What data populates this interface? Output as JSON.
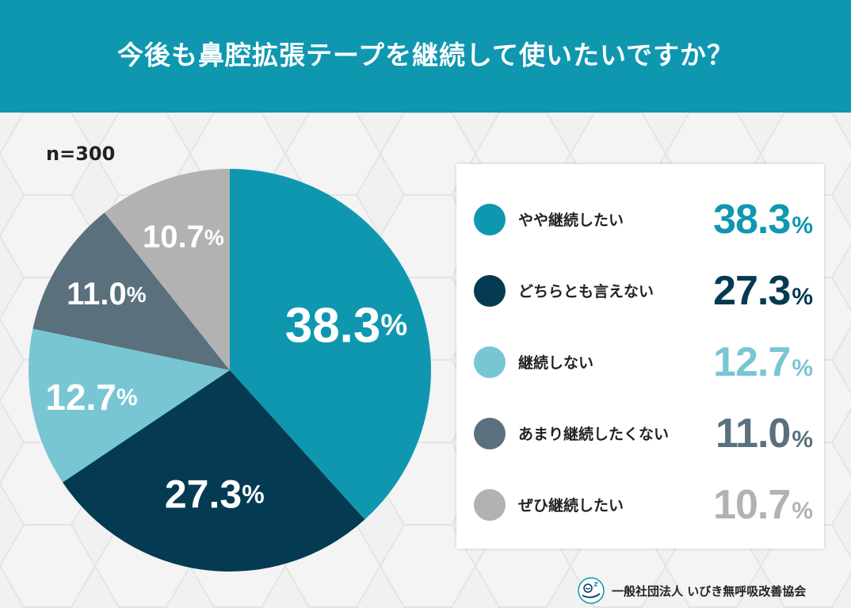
{
  "header": {
    "title": "今後も鼻腔拡張テープを継続して使いたいですか？"
  },
  "sample": {
    "label": "n=300"
  },
  "colors": {
    "header_bg": "#0f97b0",
    "yaya": "#0f97b0",
    "dochira": "#043a52",
    "shinai": "#78c6d4",
    "amari": "#5a707d",
    "zehi": "#b2b2b2"
  },
  "chart_data": {
    "type": "pie",
    "title": "今後も鼻腔拡張テープを継続して使いたいですか？",
    "n": 300,
    "unit": "%",
    "slices": [
      {
        "label": "やや継続したい",
        "value": 38.3,
        "display": "38.3",
        "color": "#0f97b0"
      },
      {
        "label": "どちらとも言えない",
        "value": 27.3,
        "display": "27.3",
        "color": "#043a52"
      },
      {
        "label": "継続しない",
        "value": 12.7,
        "display": "12.7",
        "color": "#78c6d4"
      },
      {
        "label": "あまり継続したくない",
        "value": 11.0,
        "display": "11.0",
        "color": "#5a707d"
      },
      {
        "label": "ぜひ継続したい",
        "value": 10.7,
        "display": "10.7",
        "color": "#b2b2b2"
      }
    ]
  },
  "legend": {
    "items": [
      {
        "label": "やや継続したい",
        "value": "38.3",
        "unit": "%"
      },
      {
        "label": "どちらとも言えない",
        "value": "27.3",
        "unit": "%"
      },
      {
        "label": "継続しない",
        "value": "12.7",
        "unit": "%"
      },
      {
        "label": "あまり継続したくない",
        "value": "11.0",
        "unit": "%"
      },
      {
        "label": "ぜひ継続したい",
        "value": "10.7",
        "unit": "%"
      }
    ]
  },
  "footer": {
    "organization": "一般社団法人 いびき無呼吸改善協会",
    "logo_icon": "sleeping-face-icon"
  }
}
